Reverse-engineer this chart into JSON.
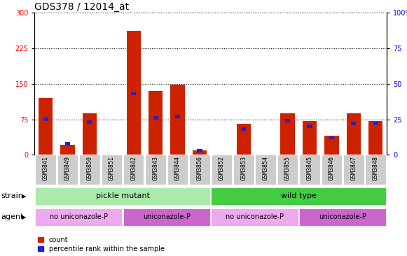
{
  "title": "GDS378 / 12014_at",
  "samples": [
    "GSM3841",
    "GSM3849",
    "GSM3850",
    "GSM3851",
    "GSM3842",
    "GSM3843",
    "GSM3844",
    "GSM3856",
    "GSM3852",
    "GSM3853",
    "GSM3854",
    "GSM3855",
    "GSM3845",
    "GSM3846",
    "GSM3847",
    "GSM3848"
  ],
  "counts": [
    120,
    22,
    88,
    0,
    262,
    135,
    148,
    10,
    0,
    65,
    0,
    88,
    72,
    40,
    88,
    72
  ],
  "percentile": [
    25,
    8,
    23,
    0,
    43,
    26,
    27,
    3,
    0,
    18,
    0,
    24,
    20,
    12,
    22,
    22
  ],
  "ylim_left": [
    0,
    300
  ],
  "ylim_right": [
    0,
    100
  ],
  "yticks_left": [
    0,
    75,
    150,
    225,
    300
  ],
  "yticks_right": [
    0,
    25,
    50,
    75,
    100
  ],
  "yticklabels_right": [
    "0",
    "25",
    "50",
    "75",
    "100%"
  ],
  "bar_color": "#cc2200",
  "percentile_color": "#2222cc",
  "grid_color": "#000000",
  "xticklabel_bg": "#cccccc",
  "strain_groups": [
    {
      "label": "pickle mutant",
      "start": 0,
      "end": 8,
      "color": "#aaeaaa"
    },
    {
      "label": "wild type",
      "start": 8,
      "end": 16,
      "color": "#44cc44"
    }
  ],
  "agent_groups": [
    {
      "label": "no uniconazole-P",
      "start": 0,
      "end": 4,
      "color": "#eeaaee"
    },
    {
      "label": "uniconazole-P",
      "start": 4,
      "end": 8,
      "color": "#cc66cc"
    },
    {
      "label": "no uniconazole-P",
      "start": 8,
      "end": 12,
      "color": "#eeaaee"
    },
    {
      "label": "uniconazole-P",
      "start": 12,
      "end": 16,
      "color": "#cc66cc"
    }
  ],
  "legend_count_label": "count",
  "legend_percentile_label": "percentile rank within the sample",
  "title_fontsize": 10,
  "tick_fontsize": 7,
  "label_fontsize": 8,
  "xtick_fontsize": 6
}
